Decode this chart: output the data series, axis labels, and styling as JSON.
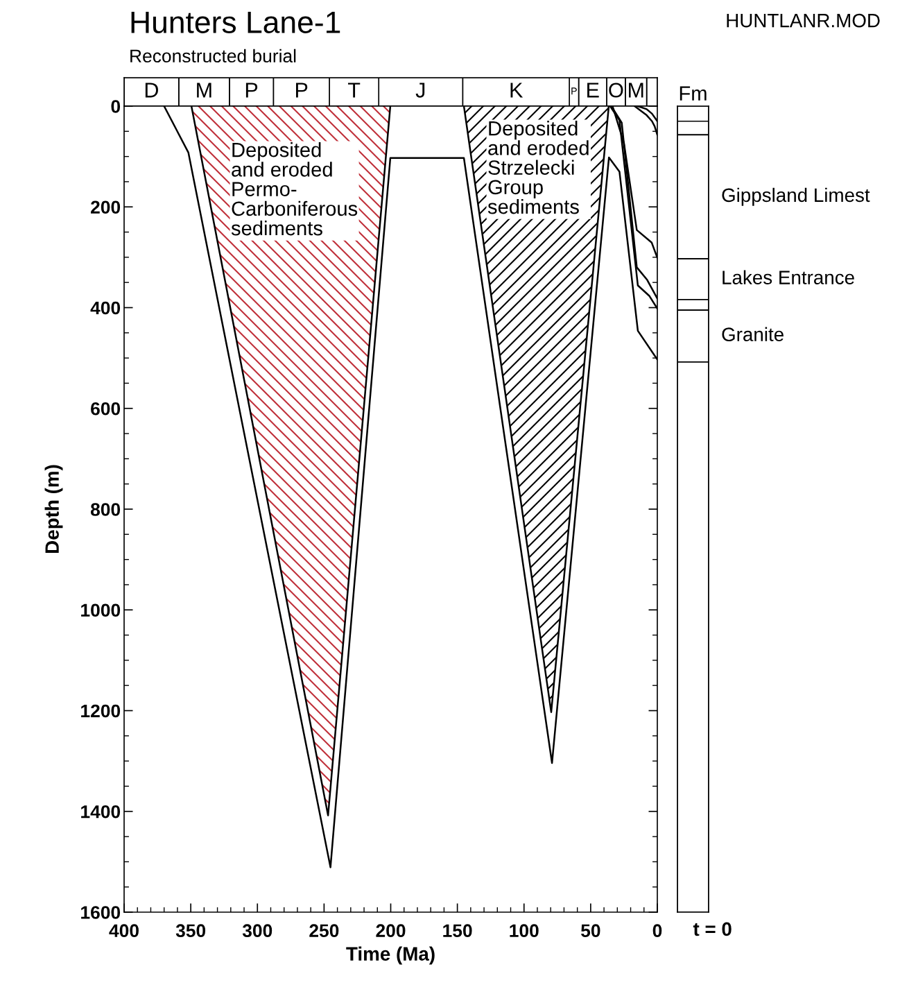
{
  "chart_data": [
    {
      "type": "bar",
      "title": "Hunters Lane-1",
      "subtitle": "Reconstructed burial",
      "annotations": [
        "HUNTLANR.MOD"
      ],
      "orientation": "horizontal",
      "stacked": true,
      "categories": [
        null
      ],
      "xlim": [
        400,
        0
      ],
      "tick_labels": false,
      "series": [
        {
          "color": "#ffffff",
          "values": [
            8
          ]
        },
        {
          "name": "M",
          "color": "#ffffff",
          "values": [
            16
          ]
        },
        {
          "name": "O",
          "color": "#ffffff",
          "values": [
            14
          ]
        },
        {
          "name": "E",
          "color": "#ffffff",
          "values": [
            21
          ]
        },
        {
          "name": "P",
          "color": "#ffffff",
          "values": [
            7
          ]
        },
        {
          "name": "K",
          "color": "#ffffff",
          "values": [
            80
          ]
        },
        {
          "name": "J",
          "color": "#ffffff",
          "values": [
            63
          ]
        },
        {
          "name": "T",
          "color": "#ffffff",
          "values": [
            37
          ]
        },
        {
          "name": "P",
          "color": "#ffffff",
          "values": [
            42
          ]
        },
        {
          "name": "P",
          "color": "#ffffff",
          "values": [
            33
          ]
        },
        {
          "name": "M",
          "color": "#ffffff",
          "values": [
            38
          ]
        },
        {
          "name": "D",
          "color": "#ffffff",
          "values": [
            41
          ]
        }
      ]
    },
    {
      "type": "line",
      "xlabel": "Time (Ma)",
      "ylabel": "Depth (m)",
      "xlim": [
        400,
        0
      ],
      "ylim": [
        1600,
        0
      ],
      "xticks": [
        400,
        350,
        300,
        250,
        200,
        150,
        100,
        50,
        0
      ],
      "yticks": [
        0,
        200,
        400,
        600,
        800,
        1000,
        1200,
        1400,
        1600
      ],
      "grid": false,
      "legend": false,
      "annotations": [
        "Deposited\nand eroded\nPermo-\nCarboniferous\nsediments",
        "Deposited\nand eroded\nStrzelecki\nGroup\nsediments"
      ],
      "series": [
        {
          "type": "area",
          "color": "#c0303a",
          "x": [
            349.5,
            247,
            200.3
          ],
          "values": [
            0,
            1408,
            0
          ]
        },
        {
          "type": "area",
          "color": "#000000",
          "x": [
            145.1,
            79.6,
            36.4
          ],
          "values": [
            0,
            1203,
            0
          ]
        },
        {
          "type": "line",
          "color": "#000000",
          "x": [
            370,
            351.8,
            245.2,
            200.3,
            145.1,
            79,
            36.3,
            28.4,
            14.6,
            0
          ],
          "values": [
            0,
            92,
            1511,
            103,
            103,
            1304,
            102,
            130,
            446,
            503
          ]
        },
        {
          "type": "line",
          "color": "#000000",
          "x": [
            35.4,
            28.4,
            14.6,
            5.9,
            0
          ],
          "values": [
            0,
            28,
            356,
            377,
            402
          ]
        },
        {
          "type": "line",
          "color": "#000000",
          "x": [
            34.5,
            26.7,
            15.4,
            7.6,
            0
          ],
          "values": [
            0,
            33,
            320,
            345,
            382
          ]
        },
        {
          "type": "line",
          "color": "#000000",
          "x": [
            33.6,
            25,
            15.4,
            4.2,
            0
          ],
          "values": [
            0,
            74,
            246,
            271,
            301
          ]
        },
        {
          "type": "line",
          "color": "#000000",
          "x": [
            17,
            12,
            8,
            4,
            2,
            0
          ],
          "values": [
            0,
            10,
            18,
            30,
            40,
            57
          ]
        },
        {
          "type": "line",
          "color": "#000000",
          "x": [
            14.6,
            8,
            4,
            0
          ],
          "values": [
            0,
            6,
            15,
            30
          ]
        }
      ]
    },
    {
      "type": "bar",
      "title": "Fm",
      "categories": [
        "t = 0"
      ],
      "stacked": true,
      "ylim": [
        1600,
        0
      ],
      "tick_labels": "x",
      "series": [
        {
          "color": "#ffffff",
          "values": [
            30
          ]
        },
        {
          "color": "#ffffff",
          "values": [
            27
          ]
        },
        {
          "name": "Gippsland Limest",
          "color": "#ffffff",
          "values": [
            246
          ]
        },
        {
          "name": "Lakes Entrance",
          "color": "#ffffff",
          "values": [
            81
          ]
        },
        {
          "color": "#ffffff",
          "values": [
            21
          ]
        },
        {
          "name": "Granite",
          "color": "#ffffff",
          "values": [
            103
          ]
        },
        {
          "color": "#ffffff",
          "values": [
            1092
          ]
        }
      ]
    }
  ]
}
